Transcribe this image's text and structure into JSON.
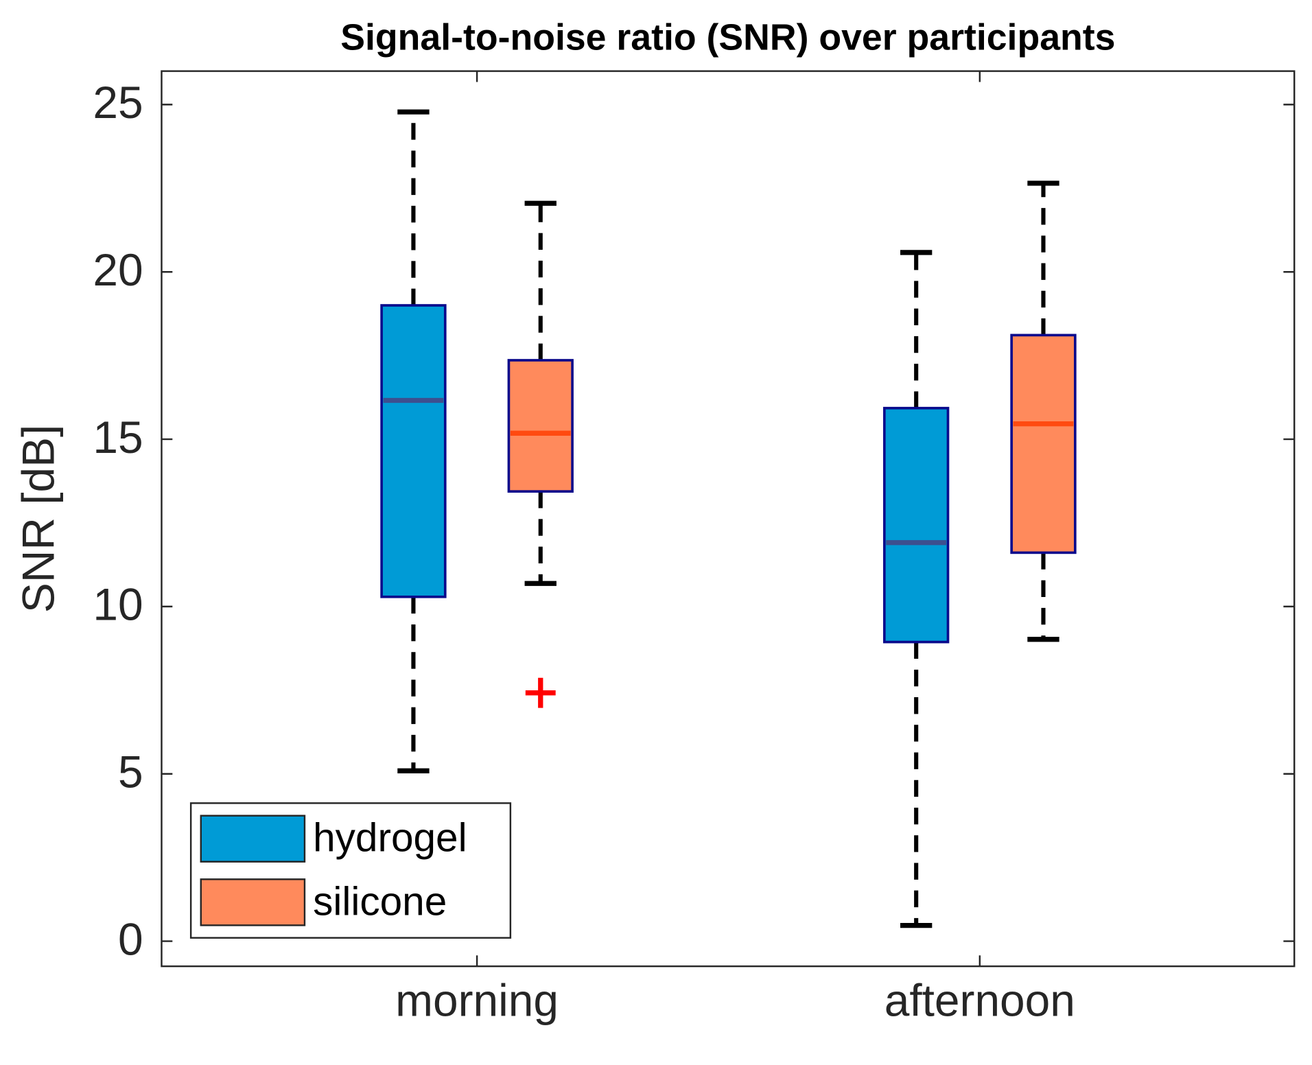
{
  "chart_data": {
    "type": "box",
    "title": "Signal-to-noise ratio (SNR) over participants",
    "y_label": "SNR [dB]",
    "categories": [
      "morning",
      "afternoon"
    ],
    "ylim": [
      -0.75,
      26
    ],
    "yticks": [
      0,
      5,
      10,
      15,
      20,
      25
    ],
    "legend": "lower left",
    "series": [
      {
        "name": "hydrogel",
        "color": "#009bd6",
        "median_color": "#3d4f8f",
        "edge_color": "#0a0a8c",
        "boxes": [
          {
            "min": 5.09,
            "q1": 10.29,
            "median": 16.16,
            "q3": 19.0,
            "max": 24.78,
            "outliers": []
          },
          {
            "min": 0.47,
            "q1": 8.94,
            "median": 11.91,
            "q3": 15.93,
            "max": 20.58,
            "outliers": []
          }
        ]
      },
      {
        "name": "silicone",
        "color": "#ff8a5c",
        "median_color": "#ff4a10",
        "edge_color": "#0a0a8c",
        "boxes": [
          {
            "min": 10.69,
            "q1": 13.44,
            "median": 15.18,
            "q3": 17.36,
            "max": 22.05,
            "outliers": [
              7.42
            ]
          },
          {
            "min": 9.02,
            "q1": 11.61,
            "median": 15.46,
            "q3": 18.11,
            "max": 22.65,
            "outliers": []
          }
        ]
      }
    ]
  }
}
